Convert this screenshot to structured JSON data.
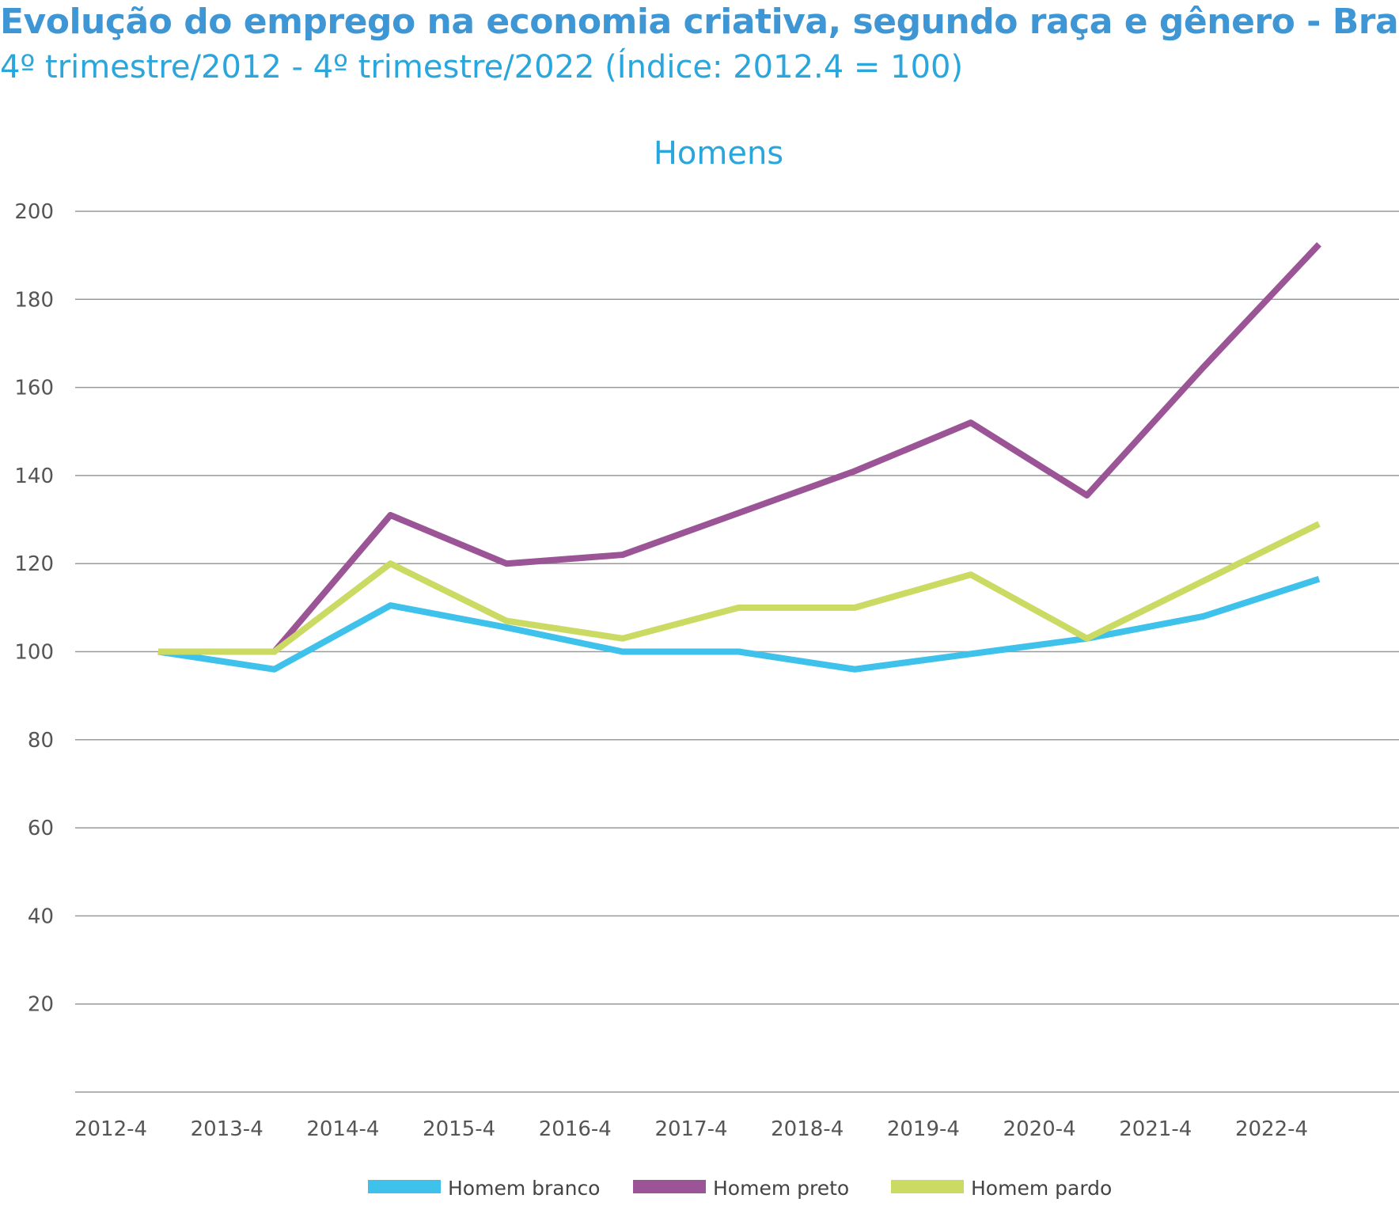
{
  "title": "Evolução do emprego na economia criativa, segundo raça e gênero - Brasil",
  "subtitle": "4º trimestre/2012 - 4º trimestre/2022 (Índice: 2012.4 = 100)",
  "chart_data": {
    "type": "line",
    "title": "Homens",
    "categories": [
      "2012-4",
      "2013-4",
      "2014-4",
      "2015-4",
      "2016-4",
      "2017-4",
      "2018-4",
      "2019-4",
      "2020-4",
      "2021-4",
      "2022-4"
    ],
    "yticks": [
      20,
      40,
      60,
      80,
      100,
      120,
      140,
      160,
      180,
      200
    ],
    "ylim": [
      0,
      200
    ],
    "grid": true,
    "legend_position": "bottom",
    "series": [
      {
        "name": "Homem branco",
        "color": "#3ec1ea",
        "values": [
          100,
          96,
          110.5,
          105.5,
          100,
          100,
          96,
          99.5,
          103,
          108,
          116.5
        ]
      },
      {
        "name": "Homem preto",
        "color": "#9b5495",
        "values": [
          100,
          100,
          131,
          120,
          122,
          131.5,
          141,
          152,
          135.5,
          164.5,
          192.5
        ]
      },
      {
        "name": "Homem pardo",
        "color": "#cbda62",
        "values": [
          100,
          100,
          120,
          107,
          103,
          110,
          110,
          117.5,
          103,
          116,
          129
        ]
      }
    ]
  }
}
